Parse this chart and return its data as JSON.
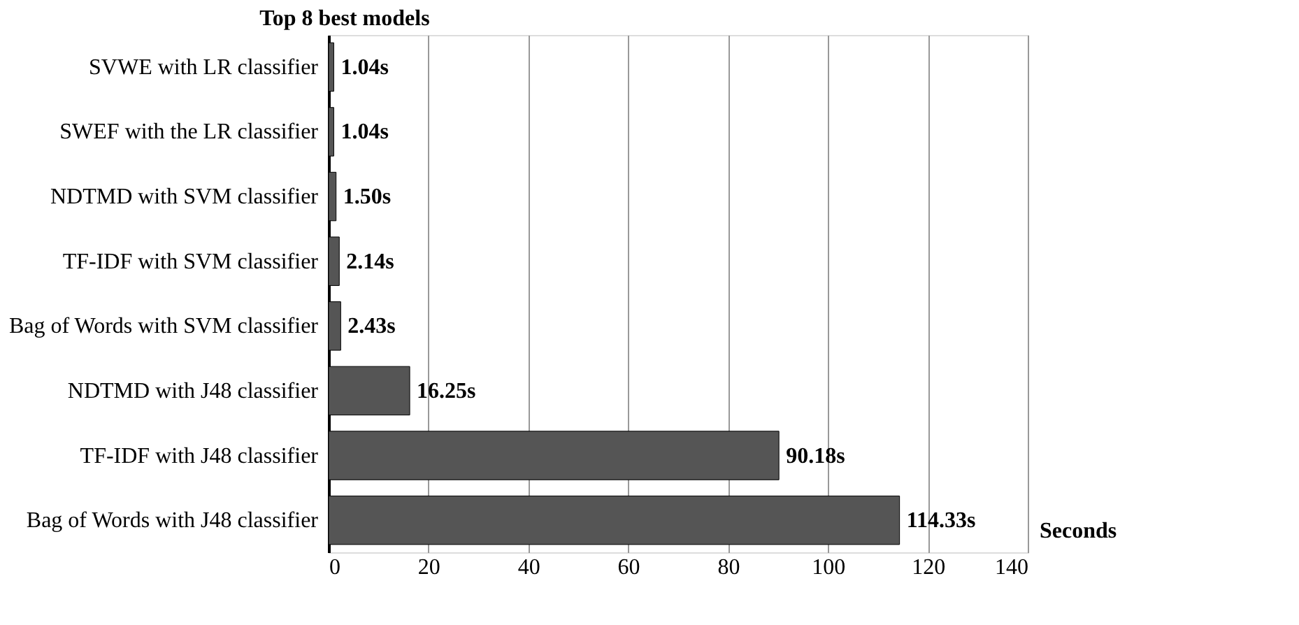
{
  "chart_data": {
    "type": "bar",
    "orientation": "horizontal",
    "title": "Top 8 best models",
    "xlabel": "Seconds",
    "categories": [
      "SVWE with LR classifier",
      "SWEF with the LR classifier",
      "NDTMD with SVM classifier",
      "TF-IDF with SVM classifier",
      "Bag of Words with SVM classifier",
      "NDTMD with J48 classifier",
      "TF-IDF with J48 classifier",
      "Bag of Words with J48 classifier"
    ],
    "values": [
      1.04,
      1.04,
      1.5,
      2.14,
      2.43,
      16.25,
      90.18,
      114.33
    ],
    "value_labels": [
      "1.04s",
      "1.04s",
      "1.50s",
      "2.14s",
      "2.43s",
      "16.25s",
      "90.18s",
      "114.33s"
    ],
    "color": "#555555",
    "xlim": [
      0,
      140
    ],
    "xticks": [
      0,
      20,
      40,
      60,
      80,
      100,
      120,
      140
    ],
    "grid": "x"
  }
}
